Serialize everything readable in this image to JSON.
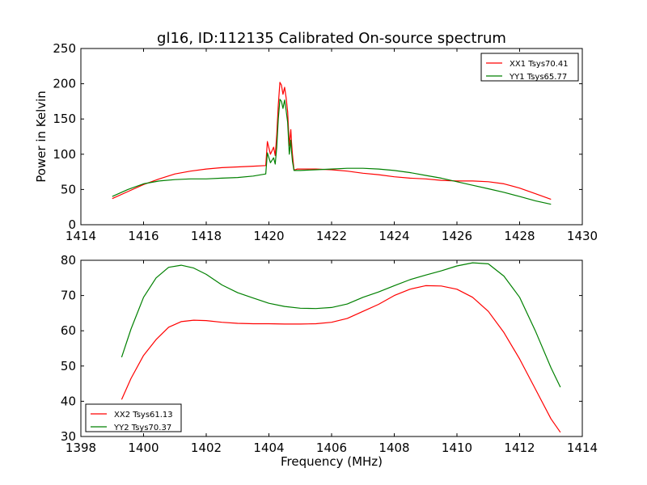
{
  "figure": {
    "title": "gl16, ID:112135 Calibrated On-source spectrum",
    "xlabel": "Frequency (MHz)"
  },
  "chart_data": [
    {
      "type": "line",
      "title": "gl16, ID:112135 Calibrated On-source spectrum",
      "xlabel": "",
      "ylabel": "Power in Kelvin",
      "xlim": [
        1414,
        1430
      ],
      "ylim": [
        0,
        250
      ],
      "xticks": [
        1414,
        1416,
        1418,
        1420,
        1422,
        1424,
        1426,
        1428,
        1430
      ],
      "yticks": [
        0,
        50,
        100,
        150,
        200,
        250
      ],
      "grid": false,
      "legend_position": "top-right",
      "series": [
        {
          "name": "XX1 Tsys70.41",
          "color": "#ff0000",
          "x": [
            1415.0,
            1415.5,
            1416.0,
            1416.5,
            1417.0,
            1417.5,
            1418.0,
            1418.5,
            1419.0,
            1419.5,
            1419.9,
            1419.95,
            1420.05,
            1420.15,
            1420.2,
            1420.25,
            1420.3,
            1420.35,
            1420.4,
            1420.45,
            1420.5,
            1420.55,
            1420.6,
            1420.65,
            1420.7,
            1420.72,
            1420.75,
            1420.8,
            1420.85,
            1420.9,
            1421.0,
            1421.5,
            1422.0,
            1422.5,
            1423.0,
            1423.5,
            1424.0,
            1424.5,
            1425.0,
            1425.5,
            1426.0,
            1426.5,
            1427.0,
            1427.5,
            1428.0,
            1428.5,
            1429.0
          ],
          "values": [
            37,
            47,
            57,
            65,
            72,
            76,
            79,
            81,
            82,
            83,
            84,
            118,
            100,
            110,
            98,
            128,
            170,
            202,
            198,
            185,
            195,
            180,
            160,
            112,
            135,
            118,
            100,
            78,
            78,
            79,
            79,
            79,
            78,
            76,
            73,
            71,
            68,
            66,
            65,
            63,
            62,
            62,
            61,
            58,
            52,
            44,
            36
          ]
        },
        {
          "name": "YY1 Tsys65.77",
          "color": "#008000",
          "x": [
            1415.0,
            1415.5,
            1416.0,
            1416.5,
            1417.0,
            1417.5,
            1418.0,
            1418.5,
            1419.0,
            1419.5,
            1419.9,
            1419.95,
            1420.05,
            1420.15,
            1420.2,
            1420.25,
            1420.3,
            1420.35,
            1420.4,
            1420.45,
            1420.5,
            1420.55,
            1420.6,
            1420.65,
            1420.7,
            1420.72,
            1420.75,
            1420.8,
            1420.85,
            1420.9,
            1421.0,
            1421.5,
            1422.0,
            1422.5,
            1423.0,
            1423.5,
            1424.0,
            1424.5,
            1425.0,
            1425.5,
            1426.0,
            1426.5,
            1427.0,
            1427.5,
            1428.0,
            1428.5,
            1429.0
          ],
          "values": [
            40,
            50,
            58,
            62,
            64,
            65,
            65,
            66,
            67,
            69,
            72,
            102,
            88,
            95,
            86,
            110,
            150,
            178,
            175,
            165,
            177,
            162,
            145,
            100,
            120,
            105,
            90,
            77,
            77,
            77,
            77,
            78,
            79,
            80,
            80,
            79,
            77,
            74,
            70,
            66,
            61,
            56,
            51,
            46,
            40,
            34,
            29
          ]
        }
      ]
    },
    {
      "type": "line",
      "title": "",
      "xlabel": "Frequency (MHz)",
      "ylabel": "",
      "xlim": [
        1398,
        1414
      ],
      "ylim": [
        30,
        80
      ],
      "xticks": [
        1398,
        1400,
        1402,
        1404,
        1406,
        1408,
        1410,
        1412,
        1414
      ],
      "yticks": [
        30,
        40,
        50,
        60,
        70,
        80
      ],
      "grid": false,
      "legend_position": "bottom-left",
      "series": [
        {
          "name": "XX2 Tsys61.13",
          "color": "#ff0000",
          "x": [
            1399.3,
            1399.6,
            1400.0,
            1400.4,
            1400.8,
            1401.2,
            1401.6,
            1402.0,
            1402.5,
            1403.0,
            1403.5,
            1404.0,
            1404.5,
            1405.0,
            1405.5,
            1406.0,
            1406.5,
            1407.0,
            1407.5,
            1408.0,
            1408.5,
            1409.0,
            1409.5,
            1410.0,
            1410.5,
            1411.0,
            1411.5,
            1412.0,
            1412.5,
            1413.0,
            1413.3
          ],
          "values": [
            40.5,
            46.5,
            53.0,
            57.5,
            61.0,
            62.6,
            63.0,
            62.9,
            62.4,
            62.1,
            62.0,
            62.0,
            61.9,
            61.9,
            62.0,
            62.4,
            63.5,
            65.5,
            67.5,
            70.0,
            71.8,
            72.8,
            72.7,
            71.8,
            69.5,
            65.5,
            59.5,
            52.0,
            43.5,
            35.0,
            31.2
          ]
        },
        {
          "name": "YY2 Tsys70.37",
          "color": "#008000",
          "x": [
            1399.3,
            1399.6,
            1400.0,
            1400.4,
            1400.8,
            1401.2,
            1401.6,
            1402.0,
            1402.5,
            1403.0,
            1403.5,
            1404.0,
            1404.5,
            1405.0,
            1405.5,
            1406.0,
            1406.5,
            1407.0,
            1407.5,
            1408.0,
            1408.5,
            1409.0,
            1409.5,
            1410.0,
            1410.5,
            1411.0,
            1411.5,
            1412.0,
            1412.5,
            1413.0,
            1413.3
          ],
          "values": [
            52.5,
            60.5,
            69.5,
            75.0,
            78.0,
            78.6,
            77.8,
            76.0,
            73.0,
            70.8,
            69.3,
            67.8,
            66.9,
            66.4,
            66.3,
            66.6,
            67.6,
            69.5,
            71.0,
            72.8,
            74.5,
            75.8,
            77.0,
            78.4,
            79.3,
            79.0,
            75.5,
            69.5,
            60.0,
            49.5,
            44.0
          ]
        }
      ]
    }
  ]
}
